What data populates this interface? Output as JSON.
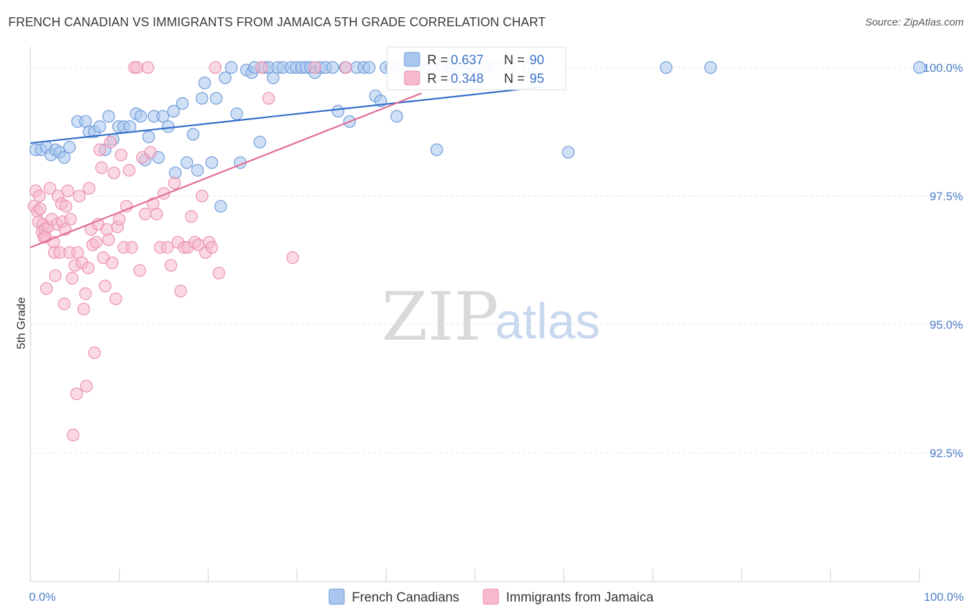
{
  "title": "FRENCH CANADIAN VS IMMIGRANTS FROM JAMAICA 5TH GRADE CORRELATION CHART",
  "source": "Source: ZipAtlas.com",
  "watermark": {
    "zip": "ZIP",
    "atlas": "atlas"
  },
  "colors": {
    "blue_fill": "#a8c6ee",
    "blue_stroke": "#6f9ad8",
    "blue_line": "#2f6cc9",
    "pink_fill": "#f6b9cd",
    "pink_stroke": "#ec8fb0",
    "pink_line": "#e06a95",
    "grid": "#e3e3e3",
    "tick_text": "#4a7cc9"
  },
  "legend": {
    "rows": [
      {
        "r_label": "R = ",
        "r_value": "0.637",
        "n_label": "N = ",
        "n_value": "90"
      },
      {
        "r_label": "R = ",
        "r_value": "0.348",
        "n_label": "N = ",
        "n_value": "95"
      }
    ]
  },
  "chart_data": {
    "type": "scatter",
    "title": "FRENCH CANADIAN VS IMMIGRANTS FROM JAMAICA 5TH GRADE CORRELATION CHART",
    "xlabel": "",
    "ylabel": "5th Grade",
    "xlim": [
      0,
      100
    ],
    "ylim": [
      90.0,
      100.4
    ],
    "y_ticks": [
      {
        "value": 100.0,
        "label": "100.0%"
      },
      {
        "value": 97.5,
        "label": "97.5%"
      },
      {
        "value": 95.0,
        "label": "95.0%"
      },
      {
        "value": 92.5,
        "label": "92.5%"
      }
    ],
    "x_tick_labels": [
      {
        "value": 0,
        "label": "0.0%"
      },
      {
        "value": 100,
        "label": "100.0%"
      }
    ],
    "grid": true,
    "legend_position": "top-center",
    "series": [
      {
        "name": "French Canadians",
        "R": 0.637,
        "N": 90,
        "trend": {
          "x0": 0,
          "y0": 98.53,
          "x1": 57.5,
          "y1": 99.62
        },
        "points": [
          [
            0.6,
            98.4
          ],
          [
            1.2,
            98.4
          ],
          [
            1.8,
            98.45
          ],
          [
            2.3,
            98.3
          ],
          [
            2.8,
            98.4
          ],
          [
            3.3,
            98.35
          ],
          [
            3.8,
            98.25
          ],
          [
            4.4,
            98.45
          ],
          [
            5.3,
            98.95
          ],
          [
            6.2,
            98.95
          ],
          [
            6.6,
            98.75
          ],
          [
            7.2,
            98.75
          ],
          [
            7.8,
            98.85
          ],
          [
            8.4,
            98.4
          ],
          [
            8.8,
            99.05
          ],
          [
            9.3,
            98.6
          ],
          [
            9.9,
            98.85
          ],
          [
            10.5,
            98.85
          ],
          [
            11.2,
            98.85
          ],
          [
            11.9,
            99.1
          ],
          [
            12.4,
            99.05
          ],
          [
            12.9,
            98.2
          ],
          [
            13.3,
            98.65
          ],
          [
            13.9,
            99.05
          ],
          [
            14.4,
            98.25
          ],
          [
            14.9,
            99.05
          ],
          [
            15.5,
            98.85
          ],
          [
            16.1,
            99.15
          ],
          [
            16.3,
            97.95
          ],
          [
            17.1,
            99.3
          ],
          [
            17.6,
            98.15
          ],
          [
            18.3,
            98.7
          ],
          [
            18.8,
            98.0
          ],
          [
            19.3,
            99.4
          ],
          [
            19.6,
            99.7
          ],
          [
            20.4,
            98.15
          ],
          [
            20.9,
            99.4
          ],
          [
            21.4,
            97.3
          ],
          [
            21.9,
            99.8
          ],
          [
            22.6,
            100.0
          ],
          [
            23.2,
            99.1
          ],
          [
            23.6,
            98.15
          ],
          [
            24.3,
            99.95
          ],
          [
            24.9,
            99.9
          ],
          [
            25.2,
            100.0
          ],
          [
            25.8,
            98.55
          ],
          [
            26.3,
            100.0
          ],
          [
            26.8,
            100.0
          ],
          [
            27.3,
            99.8
          ],
          [
            27.8,
            100.0
          ],
          [
            28.4,
            100.0
          ],
          [
            29.3,
            100.0
          ],
          [
            29.9,
            100.0
          ],
          [
            30.5,
            100.0
          ],
          [
            31.0,
            100.0
          ],
          [
            31.5,
            100.0
          ],
          [
            32.0,
            99.9
          ],
          [
            32.6,
            100.0
          ],
          [
            33.2,
            100.0
          ],
          [
            34.0,
            100.0
          ],
          [
            34.6,
            99.15
          ],
          [
            35.4,
            100.0
          ],
          [
            35.9,
            98.95
          ],
          [
            36.7,
            100.0
          ],
          [
            37.5,
            100.0
          ],
          [
            38.1,
            100.0
          ],
          [
            38.8,
            99.45
          ],
          [
            39.4,
            99.35
          ],
          [
            40.0,
            100.0
          ],
          [
            40.6,
            100.0
          ],
          [
            41.2,
            99.05
          ],
          [
            42.0,
            100.0
          ],
          [
            42.6,
            100.0
          ],
          [
            43.5,
            100.0
          ],
          [
            44.3,
            100.0
          ],
          [
            45.0,
            100.0
          ],
          [
            45.7,
            98.4
          ],
          [
            46.4,
            100.0
          ],
          [
            47.3,
            100.0
          ],
          [
            48.1,
            100.0
          ],
          [
            49.0,
            100.0
          ],
          [
            50.0,
            100.0
          ],
          [
            51.0,
            100.0
          ],
          [
            52.4,
            100.0
          ],
          [
            54.0,
            100.0
          ],
          [
            56.0,
            100.0
          ],
          [
            60.5,
            98.35
          ],
          [
            71.5,
            100.0
          ],
          [
            76.5,
            100.0
          ],
          [
            100.0,
            100.0
          ]
        ]
      },
      {
        "name": "Immigrants from Jamaica",
        "R": 0.348,
        "N": 95,
        "trend": {
          "x0": 0,
          "y0": 96.5,
          "x1": 44.0,
          "y1": 99.5
        },
        "points": [
          [
            0.4,
            97.3
          ],
          [
            0.6,
            97.6
          ],
          [
            0.8,
            97.2
          ],
          [
            0.9,
            97.0
          ],
          [
            1.0,
            97.5
          ],
          [
            1.1,
            97.25
          ],
          [
            1.3,
            96.8
          ],
          [
            1.4,
            96.95
          ],
          [
            1.5,
            96.7
          ],
          [
            1.6,
            96.85
          ],
          [
            1.7,
            96.7
          ],
          [
            1.8,
            95.7
          ],
          [
            2.0,
            96.9
          ],
          [
            2.2,
            97.65
          ],
          [
            2.4,
            97.05
          ],
          [
            2.6,
            96.6
          ],
          [
            2.7,
            96.4
          ],
          [
            2.8,
            95.95
          ],
          [
            3.0,
            96.95
          ],
          [
            3.1,
            97.5
          ],
          [
            3.3,
            96.4
          ],
          [
            3.5,
            97.35
          ],
          [
            3.6,
            97.0
          ],
          [
            3.8,
            95.4
          ],
          [
            3.9,
            96.85
          ],
          [
            4.0,
            97.3
          ],
          [
            4.2,
            97.6
          ],
          [
            4.4,
            96.4
          ],
          [
            4.5,
            97.05
          ],
          [
            4.7,
            95.9
          ],
          [
            4.8,
            92.85
          ],
          [
            5.0,
            96.15
          ],
          [
            5.2,
            93.65
          ],
          [
            5.3,
            96.4
          ],
          [
            5.5,
            97.5
          ],
          [
            5.8,
            96.2
          ],
          [
            6.0,
            95.3
          ],
          [
            6.2,
            95.6
          ],
          [
            6.3,
            93.8
          ],
          [
            6.5,
            96.1
          ],
          [
            6.6,
            97.65
          ],
          [
            6.8,
            96.85
          ],
          [
            7.0,
            96.55
          ],
          [
            7.2,
            94.45
          ],
          [
            7.4,
            96.6
          ],
          [
            7.6,
            96.95
          ],
          [
            7.8,
            98.4
          ],
          [
            8.0,
            98.05
          ],
          [
            8.2,
            96.3
          ],
          [
            8.4,
            95.75
          ],
          [
            8.6,
            96.85
          ],
          [
            8.8,
            96.65
          ],
          [
            9.0,
            98.55
          ],
          [
            9.2,
            96.2
          ],
          [
            9.4,
            97.95
          ],
          [
            9.6,
            95.5
          ],
          [
            9.8,
            96.9
          ],
          [
            10.0,
            97.05
          ],
          [
            10.2,
            98.3
          ],
          [
            10.5,
            96.5
          ],
          [
            10.8,
            97.3
          ],
          [
            11.1,
            98.0
          ],
          [
            11.4,
            96.5
          ],
          [
            11.7,
            100.0
          ],
          [
            12.0,
            100.0
          ],
          [
            12.3,
            96.05
          ],
          [
            12.6,
            98.25
          ],
          [
            12.9,
            97.15
          ],
          [
            13.2,
            100.0
          ],
          [
            13.5,
            98.35
          ],
          [
            13.8,
            97.35
          ],
          [
            14.2,
            97.15
          ],
          [
            14.6,
            96.5
          ],
          [
            15.0,
            97.55
          ],
          [
            15.4,
            96.5
          ],
          [
            15.8,
            96.15
          ],
          [
            16.2,
            97.75
          ],
          [
            16.6,
            96.6
          ],
          [
            16.9,
            95.65
          ],
          [
            17.3,
            96.5
          ],
          [
            17.7,
            96.5
          ],
          [
            18.1,
            97.1
          ],
          [
            18.5,
            96.6
          ],
          [
            18.9,
            96.55
          ],
          [
            19.3,
            97.5
          ],
          [
            19.7,
            96.4
          ],
          [
            20.1,
            96.6
          ],
          [
            20.4,
            96.5
          ],
          [
            20.8,
            100.0
          ],
          [
            21.2,
            96.0
          ],
          [
            26.0,
            100.0
          ],
          [
            26.8,
            99.4
          ],
          [
            29.5,
            96.3
          ],
          [
            32.0,
            100.0
          ],
          [
            35.5,
            100.0
          ]
        ]
      }
    ]
  },
  "bottom_legend": [
    {
      "label": "French Canadians"
    },
    {
      "label": "Immigrants from Jamaica"
    }
  ]
}
